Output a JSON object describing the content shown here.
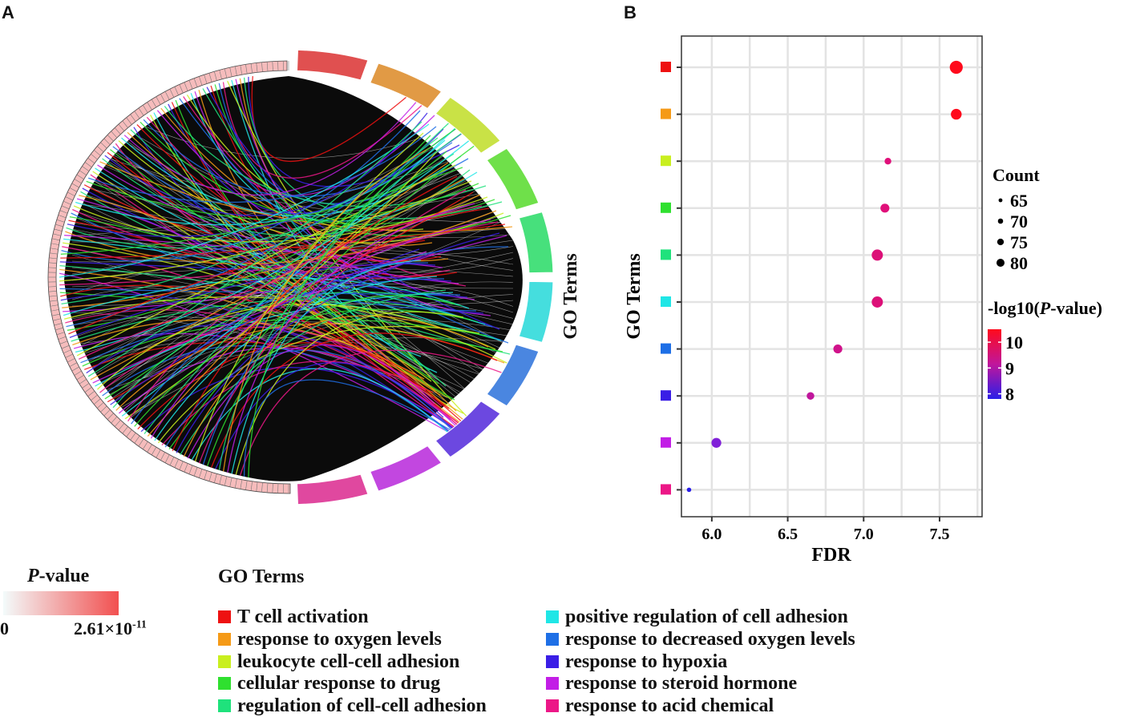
{
  "panels": {
    "a": "A",
    "b": "B"
  },
  "go_terms": [
    {
      "name": "T cell activation",
      "color": "#ee1111"
    },
    {
      "name": "response to oxygen levels",
      "color": "#f59a17"
    },
    {
      "name": "leukocyte cell-cell adhesion",
      "color": "#c9ef1f"
    },
    {
      "name": "cellular response to drug",
      "color": "#2fe02f"
    },
    {
      "name": "regulation of cell-cell adhesion",
      "color": "#1fe27c"
    },
    {
      "name": "positive regulation of cell adhesion",
      "color": "#1fe6e6"
    },
    {
      "name": "response to decreased oxygen levels",
      "color": "#1e6fe6"
    },
    {
      "name": "response to hypoxia",
      "color": "#3a1ee6"
    },
    {
      "name": "response to steroid hormone",
      "color": "#c21ee6"
    },
    {
      "name": "response to acid chemical",
      "color": "#ec1787"
    }
  ],
  "chord": {
    "sector_label": "GO Terms",
    "segment_colors": [
      "#e05050",
      "#e19a45",
      "#c9e246",
      "#6fe04a",
      "#47e07c",
      "#45dede",
      "#4a86e0",
      "#6c48e0",
      "#c247e0",
      "#e0489f"
    ]
  },
  "pvalue_legend": {
    "title_italic": "P",
    "title_rest": "-value",
    "min_label": "0",
    "max_label": "2.61×10",
    "max_exp": "-11",
    "color_low": "#f3fbfb",
    "color_high": "#f25050"
  },
  "go_legend_title": "GO Terms",
  "chart_data": {
    "type": "scatter",
    "xlabel": "FDR",
    "ylabel": "GO Terms",
    "xlim": [
      5.8,
      7.78
    ],
    "xticks": [
      6.0,
      6.5,
      7.0,
      7.5
    ],
    "xtick_labels": [
      "6.0",
      "6.5",
      "7.0",
      "7.5"
    ],
    "grid": true,
    "points": [
      {
        "term": "T cell activation",
        "fdr": 7.61,
        "count": 80,
        "neglog10p": 10.4,
        "color": "#ff0a1c"
      },
      {
        "term": "response to oxygen levels",
        "fdr": 7.61,
        "count": 75,
        "neglog10p": 10.4,
        "color": "#ff0a1c"
      },
      {
        "term": "leukocyte cell-cell adhesion",
        "fdr": 7.16,
        "count": 66,
        "neglog10p": 9.8,
        "color": "#e0107a"
      },
      {
        "term": "cellular response to drug",
        "fdr": 7.14,
        "count": 71,
        "neglog10p": 9.8,
        "color": "#e0107a"
      },
      {
        "term": "regulation of cell-cell adhesion",
        "fdr": 7.09,
        "count": 76,
        "neglog10p": 9.7,
        "color": "#dc1078"
      },
      {
        "term": "positive regulation of cell adhesion",
        "fdr": 7.09,
        "count": 76,
        "neglog10p": 9.7,
        "color": "#dc1078"
      },
      {
        "term": "response to decreased oxygen levels",
        "fdr": 6.83,
        "count": 71,
        "neglog10p": 9.5,
        "color": "#d0128a"
      },
      {
        "term": "response to hypoxia",
        "fdr": 6.65,
        "count": 68,
        "neglog10p": 9.2,
        "color": "#c0169c"
      },
      {
        "term": "response to steroid hormone",
        "fdr": 6.03,
        "count": 73,
        "neglog10p": 8.4,
        "color": "#8020d8"
      },
      {
        "term": "response to acid chemical",
        "fdr": 5.85,
        "count": 61,
        "neglog10p": 7.8,
        "color": "#2a1ee8"
      }
    ],
    "size_legend": {
      "title": "Count",
      "values": [
        65,
        70,
        75,
        80
      ],
      "labels": [
        "65",
        "70",
        "75",
        "80"
      ]
    },
    "color_legend": {
      "title_prefix": "-log10(",
      "title_italic": "P",
      "title_suffix": "-value)",
      "tick_values": [
        10,
        9,
        8
      ],
      "tick_labels": [
        "10",
        "9",
        "8"
      ],
      "range": [
        7.8,
        10.5
      ],
      "colors": [
        "#2a1ee8",
        "#c0169c",
        "#ff0a1c"
      ]
    }
  }
}
